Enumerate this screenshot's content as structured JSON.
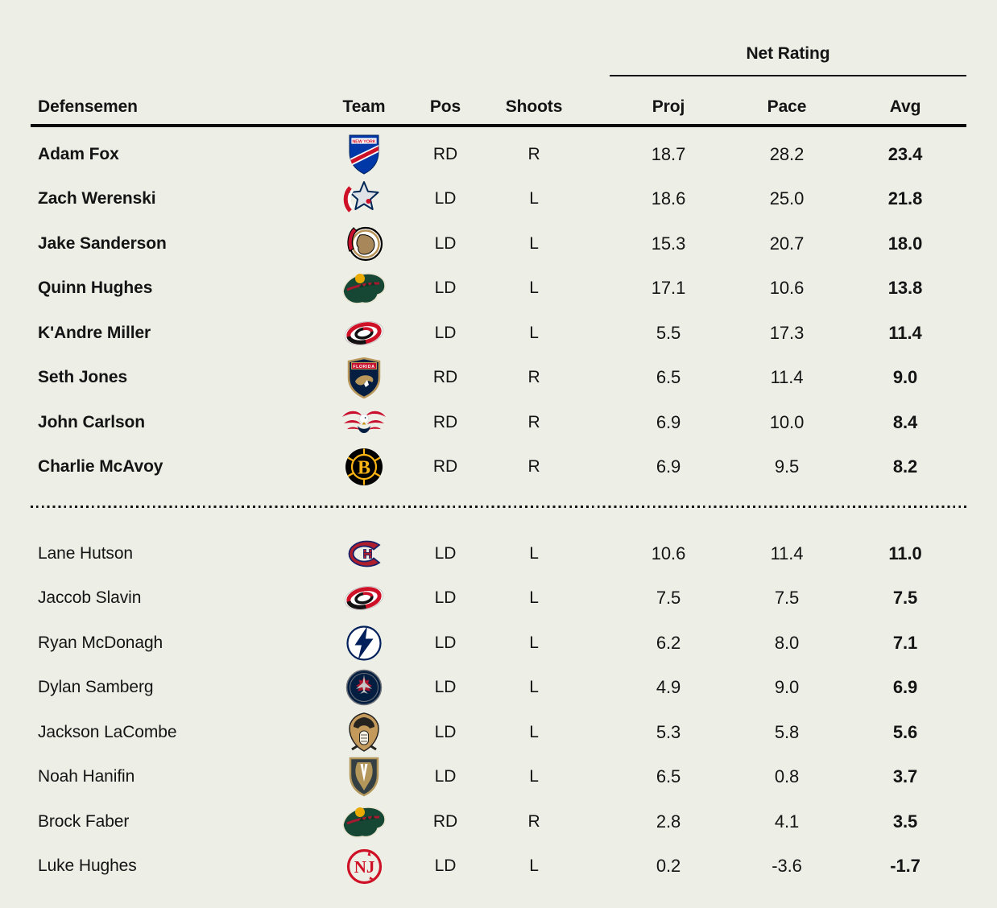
{
  "page": {
    "background": "#EDEFE7",
    "text_color": "#141414",
    "rule_color": "#0A0A0A"
  },
  "table": {
    "group_header": "Net Rating",
    "columns": {
      "defensemen": "Defensemen",
      "team": "Team",
      "pos": "Pos",
      "shoots": "Shoots",
      "proj": "Proj",
      "pace": "Pace",
      "avg": "Avg"
    },
    "sections": [
      {
        "id": "top",
        "players": [
          {
            "name": "Adam Fox",
            "team": "nyr",
            "pos": "RD",
            "shoots": "R",
            "proj": "18.7",
            "pace": "28.2",
            "avg": "23.4"
          },
          {
            "name": "Zach Werenski",
            "team": "cbj",
            "pos": "LD",
            "shoots": "L",
            "proj": "18.6",
            "pace": "25.0",
            "avg": "21.8"
          },
          {
            "name": "Jake Sanderson",
            "team": "ott",
            "pos": "LD",
            "shoots": "L",
            "proj": "15.3",
            "pace": "20.7",
            "avg": "18.0"
          },
          {
            "name": "Quinn Hughes",
            "team": "min",
            "pos": "LD",
            "shoots": "L",
            "proj": "17.1",
            "pace": "10.6",
            "avg": "13.8"
          },
          {
            "name": "K'Andre Miller",
            "team": "car",
            "pos": "LD",
            "shoots": "L",
            "proj": "5.5",
            "pace": "17.3",
            "avg": "11.4"
          },
          {
            "name": "Seth Jones",
            "team": "fla",
            "pos": "RD",
            "shoots": "R",
            "proj": "6.5",
            "pace": "11.4",
            "avg": "9.0"
          },
          {
            "name": "John Carlson",
            "team": "wsh",
            "pos": "RD",
            "shoots": "R",
            "proj": "6.9",
            "pace": "10.0",
            "avg": "8.4"
          },
          {
            "name": "Charlie McAvoy",
            "team": "bos",
            "pos": "RD",
            "shoots": "R",
            "proj": "6.9",
            "pace": "9.5",
            "avg": "8.2"
          }
        ]
      },
      {
        "id": "bottom",
        "players": [
          {
            "name": "Lane Hutson",
            "team": "mtl",
            "pos": "LD",
            "shoots": "L",
            "proj": "10.6",
            "pace": "11.4",
            "avg": "11.0"
          },
          {
            "name": "Jaccob Slavin",
            "team": "car",
            "pos": "LD",
            "shoots": "L",
            "proj": "7.5",
            "pace": "7.5",
            "avg": "7.5"
          },
          {
            "name": "Ryan McDonagh",
            "team": "tbl",
            "pos": "LD",
            "shoots": "L",
            "proj": "6.2",
            "pace": "8.0",
            "avg": "7.1"
          },
          {
            "name": "Dylan Samberg",
            "team": "wpg",
            "pos": "LD",
            "shoots": "L",
            "proj": "4.9",
            "pace": "9.0",
            "avg": "6.9"
          },
          {
            "name": "Jackson LaCombe",
            "team": "ana",
            "pos": "LD",
            "shoots": "L",
            "proj": "5.3",
            "pace": "5.8",
            "avg": "5.6"
          },
          {
            "name": "Noah Hanifin",
            "team": "vgk",
            "pos": "LD",
            "shoots": "L",
            "proj": "6.5",
            "pace": "0.8",
            "avg": "3.7"
          },
          {
            "name": "Brock Faber",
            "team": "min",
            "pos": "RD",
            "shoots": "R",
            "proj": "2.8",
            "pace": "4.1",
            "avg": "3.5"
          },
          {
            "name": "Luke Hughes",
            "team": "njd",
            "pos": "LD",
            "shoots": "L",
            "proj": "0.2",
            "pace": "-3.6",
            "avg": "-1.7"
          }
        ]
      }
    ]
  },
  "teams": {
    "nyr": {
      "name": "New York Rangers",
      "c1": "#0038A8",
      "c2": "#CE1126",
      "c3": "#FFFFFF",
      "text": "NEW YORK"
    },
    "cbj": {
      "name": "Columbus Blue Jackets",
      "c1": "#002654",
      "c2": "#CE1126",
      "c3": "#DFE3E8"
    },
    "ott": {
      "name": "Ottawa Senators",
      "c1": "#000000",
      "c2": "#C8102E",
      "c3": "#B79257"
    },
    "min": {
      "name": "Minnesota Wild",
      "c1": "#154734",
      "c2": "#A6192E",
      "c3": "#EAAA00"
    },
    "car": {
      "name": "Carolina Hurricanes",
      "c1": "#CE1126",
      "c2": "#111111",
      "c3": "#FFFFFF"
    },
    "fla": {
      "name": "Florida Panthers",
      "c1": "#041E42",
      "c2": "#C8102E",
      "c3": "#B9975B",
      "text": "FLORIDA"
    },
    "wsh": {
      "name": "Washington Capitals",
      "c1": "#C8102E",
      "c2": "#041E42",
      "c3": "#FFFFFF"
    },
    "bos": {
      "name": "Boston Bruins",
      "c1": "#000000",
      "c2": "#FCB514",
      "text": "B"
    },
    "mtl": {
      "name": "Montreal Canadiens",
      "c1": "#AF1E2D",
      "c2": "#192168"
    },
    "tbl": {
      "name": "Tampa Bay Lightning",
      "c1": "#00205B",
      "c2": "#FFFFFF"
    },
    "wpg": {
      "name": "Winnipeg Jets",
      "c1": "#041E42",
      "c2": "#AC162C",
      "c3": "#C7C9C7"
    },
    "ana": {
      "name": "Anaheim Ducks",
      "c1": "#C49A5C",
      "c2": "#C8102E",
      "c3": "#F4F1E4"
    },
    "vgk": {
      "name": "Vegas Golden Knights",
      "c1": "#B4975A",
      "c2": "#333F42",
      "c3": "#FFFFFF"
    },
    "njd": {
      "name": "New Jersey Devils",
      "c1": "#CE1126",
      "c2": "#FFFFFF",
      "text": "NJ"
    }
  },
  "chart_data": {
    "type": "table",
    "title": "Net Rating",
    "headers": [
      "Defensemen",
      "Team",
      "Pos",
      "Shoots",
      "Proj",
      "Pace",
      "Avg"
    ],
    "rows": [
      [
        "Adam Fox",
        "New York Rangers",
        "RD",
        "R",
        18.7,
        28.2,
        23.4
      ],
      [
        "Zach Werenski",
        "Columbus Blue Jackets",
        "LD",
        "L",
        18.6,
        25.0,
        21.8
      ],
      [
        "Jake Sanderson",
        "Ottawa Senators",
        "LD",
        "L",
        15.3,
        20.7,
        18.0
      ],
      [
        "Quinn Hughes",
        "Minnesota Wild",
        "LD",
        "L",
        17.1,
        10.6,
        13.8
      ],
      [
        "K'Andre Miller",
        "Carolina Hurricanes",
        "LD",
        "L",
        5.5,
        17.3,
        11.4
      ],
      [
        "Seth Jones",
        "Florida Panthers",
        "RD",
        "R",
        6.5,
        11.4,
        9.0
      ],
      [
        "John Carlson",
        "Washington Capitals",
        "RD",
        "R",
        6.9,
        10.0,
        8.4
      ],
      [
        "Charlie McAvoy",
        "Boston Bruins",
        "RD",
        "R",
        6.9,
        9.5,
        8.2
      ],
      [
        "Lane Hutson",
        "Montreal Canadiens",
        "LD",
        "L",
        10.6,
        11.4,
        11.0
      ],
      [
        "Jaccob Slavin",
        "Carolina Hurricanes",
        "LD",
        "L",
        7.5,
        7.5,
        7.5
      ],
      [
        "Ryan McDonagh",
        "Tampa Bay Lightning",
        "LD",
        "L",
        6.2,
        8.0,
        7.1
      ],
      [
        "Dylan Samberg",
        "Winnipeg Jets",
        "LD",
        "L",
        4.9,
        9.0,
        6.9
      ],
      [
        "Jackson LaCombe",
        "Anaheim Ducks",
        "LD",
        "L",
        5.3,
        5.8,
        5.6
      ],
      [
        "Noah Hanifin",
        "Vegas Golden Knights",
        "LD",
        "L",
        6.5,
        0.8,
        3.7
      ],
      [
        "Brock Faber",
        "Minnesota Wild",
        "RD",
        "R",
        2.8,
        4.1,
        3.5
      ],
      [
        "Luke Hughes",
        "New Jersey Devils",
        "LD",
        "L",
        0.2,
        -3.6,
        -1.7
      ]
    ],
    "notes": "Dotted divider separates rows 1-8 (bold names) from rows 9-16; Avg column rendered bold."
  }
}
